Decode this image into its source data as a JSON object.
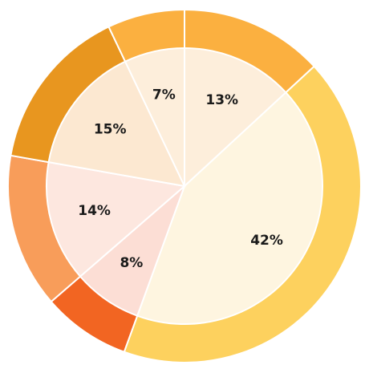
{
  "chart_data": {
    "type": "pie",
    "title": "",
    "start_angle_deg": 0,
    "direction": "clockwise",
    "slices": [
      {
        "label": "13%",
        "value": 13,
        "ring_color": "#FBB040",
        "fill_color": "#FDEEDB"
      },
      {
        "label": "42%",
        "value": 42,
        "ring_color": "#FDD15E",
        "fill_color": "#FEF5E0"
      },
      {
        "label": "8%",
        "value": 8,
        "ring_color": "#F26522",
        "fill_color": "#FCDED5"
      },
      {
        "label": "14%",
        "value": 14,
        "ring_color": "#F89D5A",
        "fill_color": "#FDE7DF"
      },
      {
        "label": "15%",
        "value": 15,
        "ring_color": "#E8961F",
        "fill_color": "#FCE8D1"
      },
      {
        "label": "7%",
        "value": 7,
        "ring_color": "#FBB040",
        "fill_color": "#FDEEDB"
      }
    ],
    "separator_color": "#FFFFFF"
  }
}
